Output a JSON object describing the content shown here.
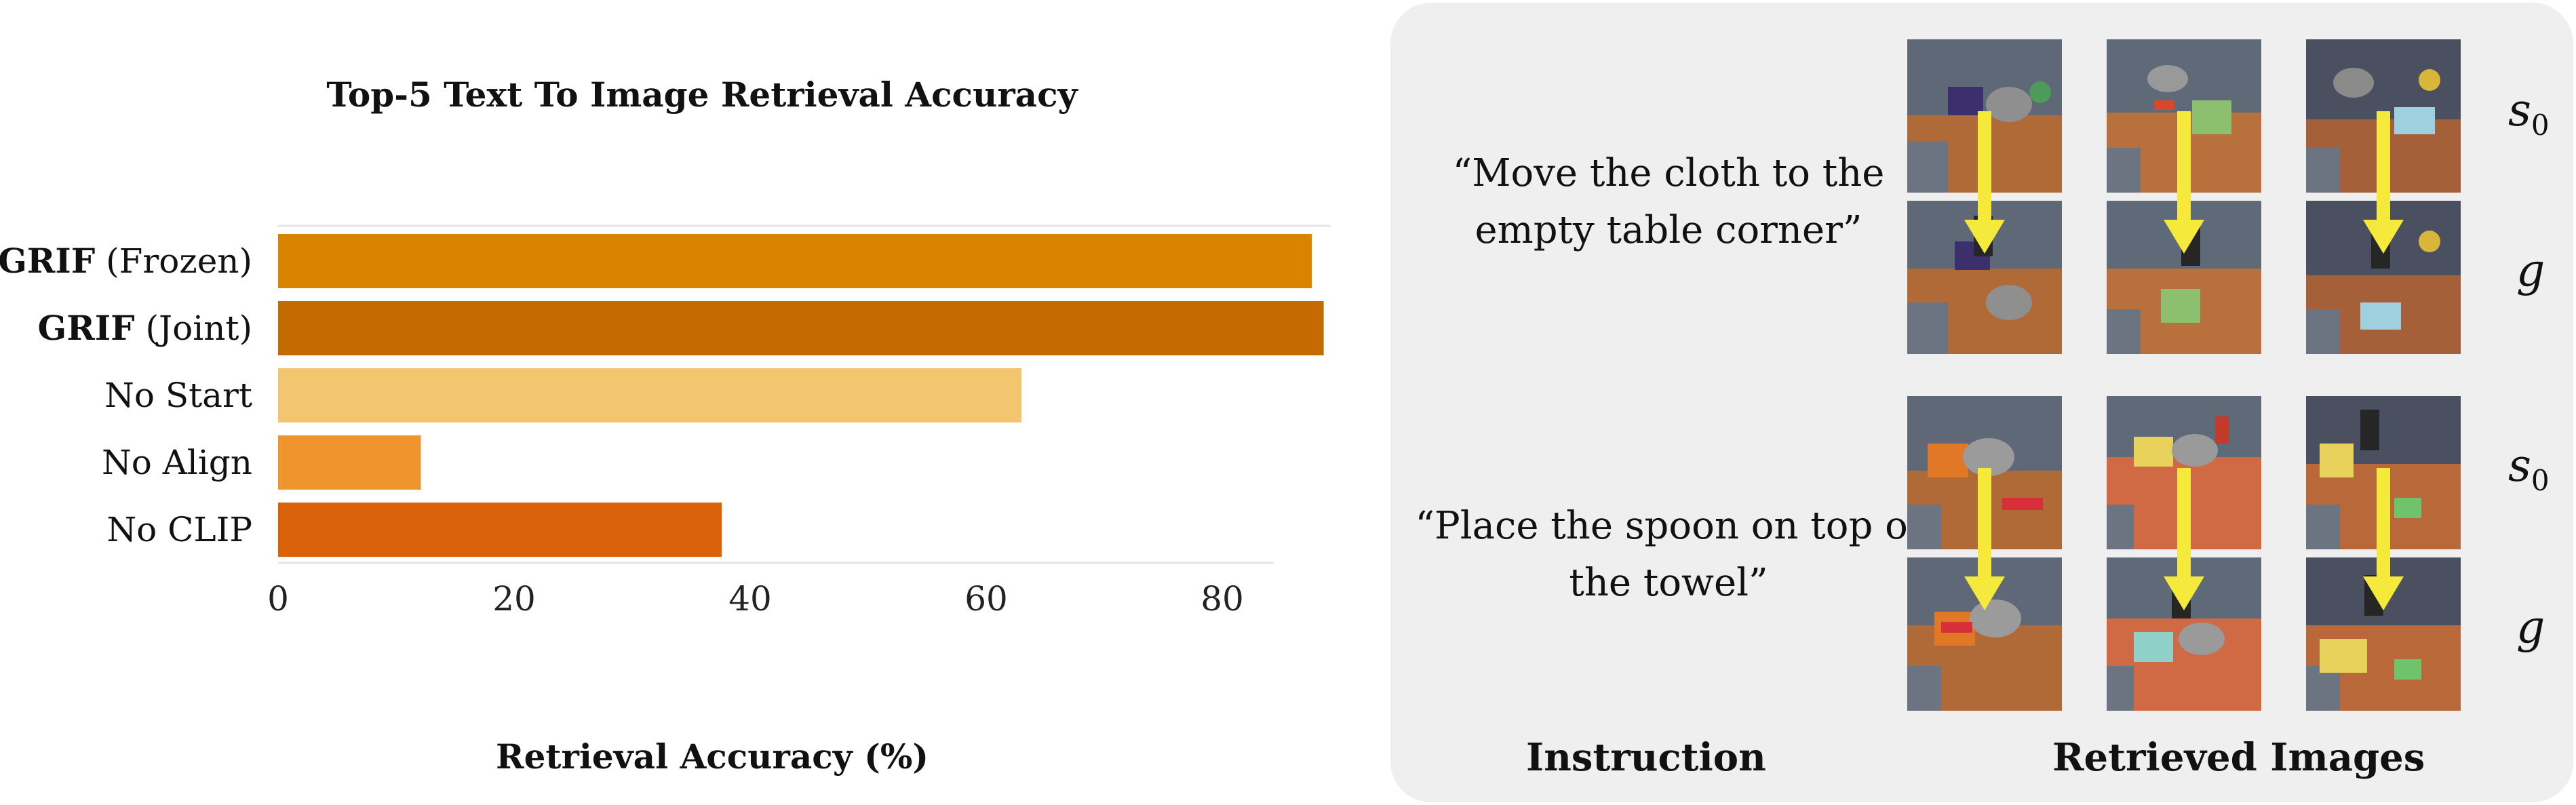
{
  "chart_data": {
    "type": "bar",
    "orientation": "horizontal",
    "title": "Top-5 Text To Image Retrieval Accuracy",
    "xlabel": "Retrieval Accuracy (%)",
    "ylabel": "",
    "xlim": [
      0,
      85
    ],
    "xticks": [
      0,
      20,
      40,
      60,
      80
    ],
    "grid": false,
    "categories": [
      {
        "bold": "GRIF",
        "rest": " (Frozen)"
      },
      {
        "bold": "GRIF",
        "rest": " (Joint)"
      },
      {
        "bold": "",
        "rest": "No Start"
      },
      {
        "bold": "",
        "rest": "No Align"
      },
      {
        "bold": "",
        "rest": "No CLIP"
      }
    ],
    "values": [
      87.6,
      88.6,
      63.0,
      12.1,
      37.6
    ],
    "colors": [
      "#d98400",
      "#c46b00",
      "#f2c56e",
      "#ef952e",
      "#d9620a"
    ]
  },
  "panel": {
    "instructions": [
      "“Move the cloth to the empty table corner”",
      "“Place the spoon on top of the towel”"
    ],
    "instruction_heading": "Instruction",
    "images_heading": "Retrieved Images",
    "row_label_start": "s",
    "row_label_start_sub": "0",
    "row_label_goal": "g",
    "arrow_color": "#f5ea3c"
  }
}
